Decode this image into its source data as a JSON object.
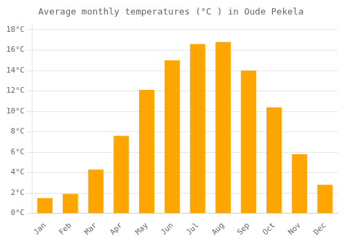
{
  "chart_data": {
    "type": "bar",
    "title": "Average monthly temperatures (°C ) in Oude Pekela",
    "categories": [
      "Jan",
      "Feb",
      "Mar",
      "Apr",
      "May",
      "Jun",
      "Jul",
      "Aug",
      "Sep",
      "Oct",
      "Nov",
      "Dec"
    ],
    "values": [
      1.5,
      1.9,
      4.3,
      7.6,
      12.1,
      15.0,
      16.6,
      16.8,
      14.0,
      10.4,
      5.8,
      2.8
    ],
    "color": "#FFA500",
    "ylim": [
      0,
      18.5
    ],
    "yticks": [
      {
        "value": 0,
        "label": "0°C"
      },
      {
        "value": 2,
        "label": "2°C"
      },
      {
        "value": 4,
        "label": "4°C"
      },
      {
        "value": 6,
        "label": "6°C"
      },
      {
        "value": 8,
        "label": "8°C"
      },
      {
        "value": 10,
        "label": "10°C"
      },
      {
        "value": 12,
        "label": "12°C"
      },
      {
        "value": 14,
        "label": "14°C"
      },
      {
        "value": 16,
        "label": "16°C"
      },
      {
        "value": 18,
        "label": "18°C"
      }
    ],
    "grid": true
  }
}
